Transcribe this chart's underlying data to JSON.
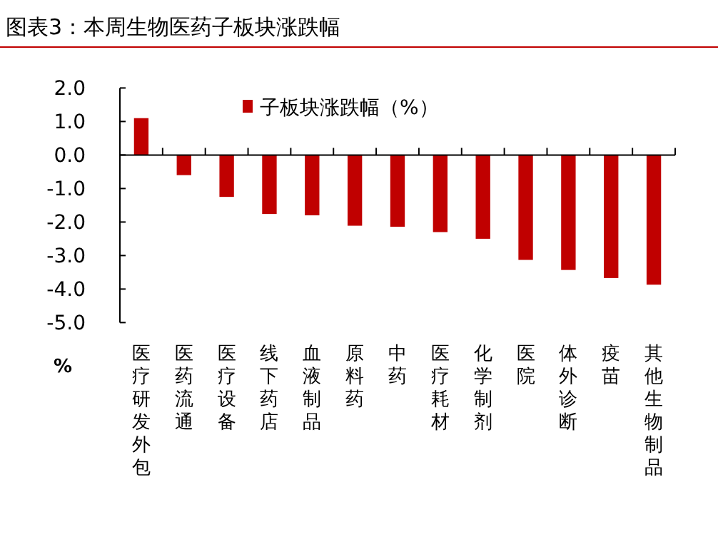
{
  "chart_data": {
    "type": "bar",
    "title": "图表3：本周生物医药子板块涨跌幅",
    "ylabel": "%",
    "categories": [
      "医疗研发外包",
      "医药流通",
      "医疗设备",
      "线下药店",
      "血液制品",
      "原料药",
      "中药",
      "医疗耗材",
      "化学制剂",
      "医院",
      "体外诊断",
      "疫苗",
      "其他生物制品"
    ],
    "series": [
      {
        "name": "子板块涨跌幅（%）",
        "color": "#c00000",
        "values": [
          1.1,
          -0.6,
          -1.25,
          -1.76,
          -1.8,
          -2.11,
          -2.14,
          -2.3,
          -2.5,
          -3.13,
          -3.43,
          -3.67,
          -3.87
        ]
      }
    ],
    "ylim": [
      -5,
      2
    ],
    "yticks": [
      {
        "value": -5,
        "label": "-5.0"
      },
      {
        "value": -4,
        "label": "-4.0"
      },
      {
        "value": -3,
        "label": "-3.0"
      },
      {
        "value": -2,
        "label": "-2.0"
      },
      {
        "value": -1,
        "label": "-1.0"
      },
      {
        "value": 0,
        "label": "0.0"
      },
      {
        "value": 1,
        "label": "1.0"
      },
      {
        "value": 2,
        "label": "2.0"
      }
    ],
    "legend": "top"
  }
}
